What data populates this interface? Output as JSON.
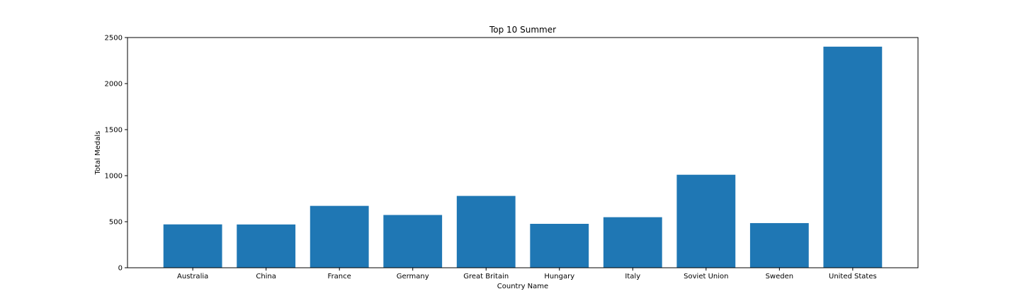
{
  "chart_data": {
    "type": "bar",
    "title": "Top 10 Summer",
    "xlabel": "Country Name",
    "ylabel": "Total Medals",
    "categories": [
      "Australia",
      "China",
      "France",
      "Germany",
      "Great Britain",
      "Hungary",
      "Italy",
      "Soviet Union",
      "Sweden",
      "United States"
    ],
    "values": [
      471,
      470,
      672,
      573,
      780,
      477,
      549,
      1010,
      485,
      2401
    ],
    "ylim": [
      0,
      2500
    ],
    "yticks": [
      0,
      500,
      1000,
      1500,
      2000,
      2500
    ],
    "bar_color": "#1f77b4",
    "grid": false,
    "legend": "none"
  }
}
